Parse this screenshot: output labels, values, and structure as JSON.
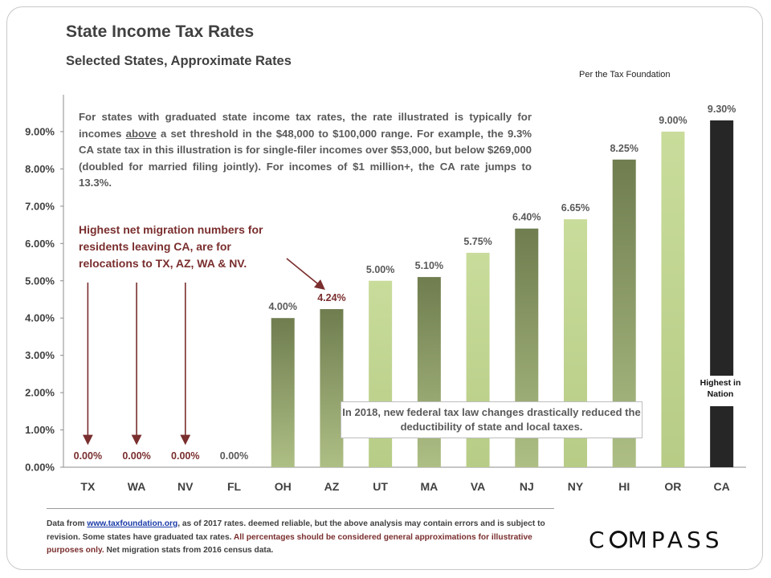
{
  "header": {
    "title": "State Income Tax Rates",
    "subtitle": "Selected States, Approximate Rates",
    "source_note": "Per the Tax Foundation"
  },
  "annotations": {
    "desc_1": "For states with graduated state income tax rates, the rate illustrated is typically for incomes ",
    "desc_above": "above",
    "desc_2": " a set threshold in the $48,000 to $100,000 range. For example, the 9.3% CA state tax in this illustration is for single-filer incomes over $53,000, but below $269,000 (doubled for married filing jointly). For incomes of $1 million+,  the CA rate jumps to 13.3%.",
    "migration": "Highest net migration numbers for residents leaving CA, are for relocations to TX, AZ, WA & NV.",
    "federal": "In 2018, new federal tax law changes drastically reduced the deductibility of state and local taxes.",
    "highest": "Highest in Nation"
  },
  "footer": {
    "part1": "Data from ",
    "link": "www.taxfoundation.org",
    "part2": ", as of 2017 rates. deemed reliable, but the above analysis may contain errors and is subject to revision. Some states have graduated tax rates. ",
    "red": "All percentages should be considered general approximations for illustrative purposes only.",
    "part3": " Net migration stats from 2016 census data.",
    "logo_pre": "C",
    "logo_post": "MPASS"
  },
  "colors": {
    "bar_dark": "#6f7d4f",
    "bar_light": "#c9dc9b",
    "bar_highlight": "#262626",
    "migration_red": "#7a2e2e",
    "label_gray": "#404040"
  },
  "chart_data": {
    "type": "bar",
    "title": "State Income Tax Rates",
    "xlabel": "",
    "ylabel": "",
    "ylim": [
      0,
      10
    ],
    "yticks": [
      0,
      1,
      2,
      3,
      4,
      5,
      6,
      7,
      8,
      9
    ],
    "ytick_labels": [
      "0.00%",
      "1.00%",
      "2.00%",
      "3.00%",
      "4.00%",
      "5.00%",
      "6.00%",
      "7.00%",
      "8.00%",
      "9.00%"
    ],
    "categories": [
      "TX",
      "WA",
      "NV",
      "FL",
      "OH",
      "AZ",
      "UT",
      "MA",
      "VA",
      "NJ",
      "NY",
      "HI",
      "OR",
      "CA"
    ],
    "values": [
      0,
      0,
      0,
      0,
      4.0,
      4.24,
      5.0,
      5.1,
      5.75,
      6.4,
      6.65,
      8.25,
      9.0,
      9.3
    ],
    "labels": [
      "0.00%",
      "0.00%",
      "0.00%",
      "0.00%",
      "4.00%",
      "4.24%",
      "5.00%",
      "5.10%",
      "5.75%",
      "6.40%",
      "6.65%",
      "8.25%",
      "9.00%",
      "9.30%"
    ],
    "label_styles": [
      "red",
      "red",
      "red",
      "gray",
      "gray",
      "red",
      "gray",
      "gray",
      "gray",
      "gray",
      "gray",
      "gray",
      "gray",
      "gray"
    ],
    "bar_styles": [
      "light",
      "light",
      "light",
      "light",
      "dark",
      "dark",
      "light",
      "dark",
      "light",
      "dark",
      "light",
      "dark",
      "light",
      "highlight"
    ],
    "arrow_targets": [
      "TX",
      "WA",
      "NV",
      "AZ"
    ]
  }
}
